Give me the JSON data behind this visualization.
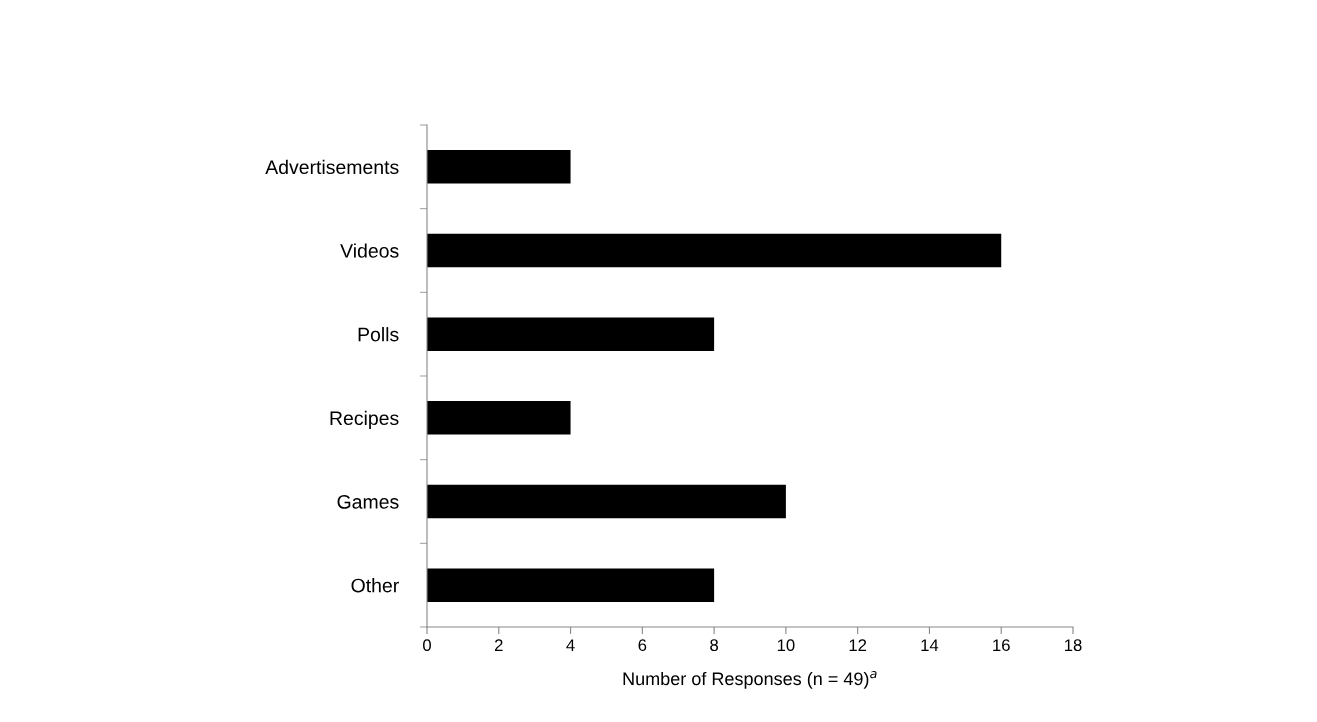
{
  "chart_data": {
    "type": "bar",
    "orientation": "horizontal",
    "categories": [
      "Advertisements",
      "Videos",
      "Polls",
      "Recipes",
      "Games",
      "Other"
    ],
    "values": [
      4,
      16,
      8,
      4,
      10,
      8
    ],
    "color": "#000000",
    "xlabel": "Number of Responses (n = 49)$^{a}$",
    "xlim": [
      0,
      18
    ],
    "xticks": [
      0,
      2,
      4,
      6,
      8,
      10,
      12,
      14,
      16,
      18
    ],
    "grid": false,
    "legend": false
  }
}
